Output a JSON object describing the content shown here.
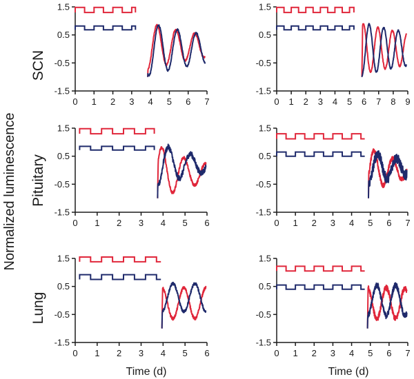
{
  "figure": {
    "ylabel": "Normalized luminescence",
    "xlabel": "Time (d)",
    "colors": {
      "series_a": "#e0263a",
      "series_b": "#1f2a6b",
      "axis": "#1a1a1a"
    }
  },
  "chart_data": [
    {
      "id": "scn-a",
      "tissue": "SCN",
      "type": "line",
      "ylim": [
        -1.5,
        1.5
      ],
      "yticks": [
        "1.5",
        "0.5",
        "-0.5",
        "-1.5"
      ],
      "xlim": [
        0,
        7
      ],
      "xticks": [
        "0",
        "1",
        "2",
        "3",
        "4",
        "5",
        "6",
        "7"
      ],
      "cycle_end": 3.75,
      "series": [
        {
          "name": "red trace",
          "color": "#e0263a",
          "step_high": 1.48,
          "step_low": 1.3,
          "step_start": 0.0,
          "step_end": 3.2,
          "osc": {
            "start": 3.85,
            "end": 6.9,
            "amp": 0.85,
            "period": 1.0,
            "phase": 0.0,
            "offset": 0.1,
            "decay": 0.25,
            "noise": 0.03
          }
        },
        {
          "name": "blue trace",
          "color": "#1f2a6b",
          "step_high": 0.82,
          "step_low": 0.68,
          "step_start": 0.0,
          "step_end": 3.2,
          "osc": {
            "start": 3.85,
            "end": 6.9,
            "amp": 0.95,
            "period": 1.0,
            "phase": -0.08,
            "offset": 0.0,
            "decay": 0.2,
            "noise": 0.03
          }
        }
      ]
    },
    {
      "id": "scn-b",
      "tissue": "",
      "type": "line",
      "ylim": [
        -1.5,
        1.5
      ],
      "yticks": [
        "1.5",
        "0.5",
        "-0.5",
        "-1.5"
      ],
      "xlim": [
        0,
        9
      ],
      "xticks": [
        "0",
        "1",
        "2",
        "3",
        "4",
        "5",
        "6",
        "7",
        "8",
        "9"
      ],
      "cycle_end": 5.75,
      "series": [
        {
          "name": "red trace",
          "color": "#e0263a",
          "step_high": 1.48,
          "step_low": 1.3,
          "step_start": 0.0,
          "step_end": 5.3,
          "osc": {
            "start": 5.85,
            "end": 8.9,
            "amp": 0.9,
            "period": 1.0,
            "phase": 0.4,
            "offset": 0.0,
            "decay": 0.15,
            "noise": 0.03
          }
        },
        {
          "name": "blue trace",
          "color": "#1f2a6b",
          "step_high": 0.82,
          "step_low": 0.68,
          "step_start": 0.0,
          "step_end": 5.3,
          "osc": {
            "start": 5.85,
            "end": 8.9,
            "amp": 0.95,
            "period": 1.0,
            "phase": 0.0,
            "offset": 0.0,
            "decay": 0.15,
            "noise": 0.03
          }
        }
      ]
    },
    {
      "id": "pit-a",
      "tissue": "Pituitary",
      "type": "line",
      "ylim": [
        -1.5,
        1.5
      ],
      "yticks": [
        "1.5",
        "0.5",
        "-0.5",
        "-1.5"
      ],
      "xlim": [
        0,
        6
      ],
      "xticks": [
        "0",
        "1",
        "2",
        "3",
        "4",
        "5",
        "6"
      ],
      "cycle_end": 3.7,
      "series": [
        {
          "name": "red trace",
          "color": "#e0263a",
          "step_high": 1.48,
          "step_low": 1.3,
          "step_start": 0.2,
          "step_end": 3.6,
          "osc": {
            "start": 3.75,
            "end": 5.95,
            "amp": 1.0,
            "period": 1.0,
            "phase": 0.3,
            "offset": -0.1,
            "decay": 0.5,
            "noise": 0.05
          }
        },
        {
          "name": "blue trace",
          "color": "#1f2a6b",
          "step_high": 0.85,
          "step_low": 0.72,
          "step_start": 0.2,
          "step_end": 3.6,
          "osc": {
            "start": 3.75,
            "end": 5.95,
            "amp": 0.8,
            "period": 1.0,
            "phase": 0.0,
            "offset": 0.2,
            "decay": 0.5,
            "noise": 0.1
          }
        }
      ]
    },
    {
      "id": "pit-b",
      "tissue": "",
      "type": "line",
      "ylim": [
        -1.5,
        1.5
      ],
      "yticks": [
        "1.5",
        "0.5",
        "-0.5",
        "-1.5"
      ],
      "xlim": [
        0,
        7
      ],
      "xticks": [
        "0",
        "1",
        "2",
        "3",
        "4",
        "5",
        "6",
        "7"
      ],
      "cycle_end": 4.9,
      "series": [
        {
          "name": "red trace",
          "color": "#e0263a",
          "step_high": 1.3,
          "step_low": 1.12,
          "step_start": 0.0,
          "step_end": 4.7,
          "osc": {
            "start": 4.9,
            "end": 6.95,
            "amp": 0.8,
            "period": 1.0,
            "phase": 0.2,
            "offset": 0.0,
            "decay": 0.5,
            "noise": 0.08
          }
        },
        {
          "name": "blue trace",
          "color": "#1f2a6b",
          "step_high": 0.65,
          "step_low": 0.5,
          "step_start": 0.0,
          "step_end": 4.7,
          "osc": {
            "start": 4.9,
            "end": 6.95,
            "amp": 0.6,
            "period": 1.0,
            "phase": 0.0,
            "offset": 0.1,
            "decay": 0.4,
            "noise": 0.18
          }
        }
      ]
    },
    {
      "id": "lung-a",
      "tissue": "Lung",
      "type": "line",
      "ylim": [
        -1.5,
        1.5
      ],
      "yticks": [
        "1.5",
        "0.5",
        "-0.5",
        "-1.5"
      ],
      "xlim": [
        0,
        6
      ],
      "xticks": [
        "0",
        "1",
        "2",
        "3",
        "4",
        "5",
        "6"
      ],
      "cycle_end": 3.9,
      "series": [
        {
          "name": "red trace",
          "color": "#e0263a",
          "step_high": 1.55,
          "step_low": 1.38,
          "step_start": 0.2,
          "step_end": 3.9,
          "osc": {
            "start": 3.95,
            "end": 5.95,
            "amp": 0.55,
            "period": 1.0,
            "phase": 0.5,
            "offset": -0.1,
            "decay": 0.0,
            "noise": 0.05
          }
        },
        {
          "name": "blue trace",
          "color": "#1f2a6b",
          "step_high": 0.92,
          "step_low": 0.75,
          "step_start": 0.2,
          "step_end": 3.9,
          "osc": {
            "start": 3.95,
            "end": 5.95,
            "amp": 0.5,
            "period": 1.0,
            "phase": 0.0,
            "offset": 0.1,
            "decay": 0.0,
            "noise": 0.05
          }
        }
      ]
    },
    {
      "id": "lung-b",
      "tissue": "",
      "type": "line",
      "ylim": [
        -1.5,
        1.5
      ],
      "yticks": [
        "1.5",
        "0.5",
        "-0.5",
        "-1.5"
      ],
      "xlim": [
        0,
        7
      ],
      "xticks": [
        "0",
        "1",
        "2",
        "3",
        "4",
        "5",
        "6",
        "7"
      ],
      "cycle_end": 4.8,
      "series": [
        {
          "name": "red trace",
          "color": "#e0263a",
          "step_high": 1.22,
          "step_low": 1.05,
          "step_start": 0.0,
          "step_end": 4.7,
          "osc": {
            "start": 4.85,
            "end": 6.95,
            "amp": 0.55,
            "period": 1.0,
            "phase": 0.5,
            "offset": -0.1,
            "decay": 0.0,
            "noise": 0.1
          }
        },
        {
          "name": "blue trace",
          "color": "#1f2a6b",
          "step_high": 0.55,
          "step_low": 0.4,
          "step_start": 0.0,
          "step_end": 4.7,
          "osc": {
            "start": 4.85,
            "end": 6.95,
            "amp": 0.55,
            "period": 1.0,
            "phase": 0.0,
            "offset": 0.0,
            "decay": 0.0,
            "noise": 0.1
          }
        }
      ]
    }
  ]
}
